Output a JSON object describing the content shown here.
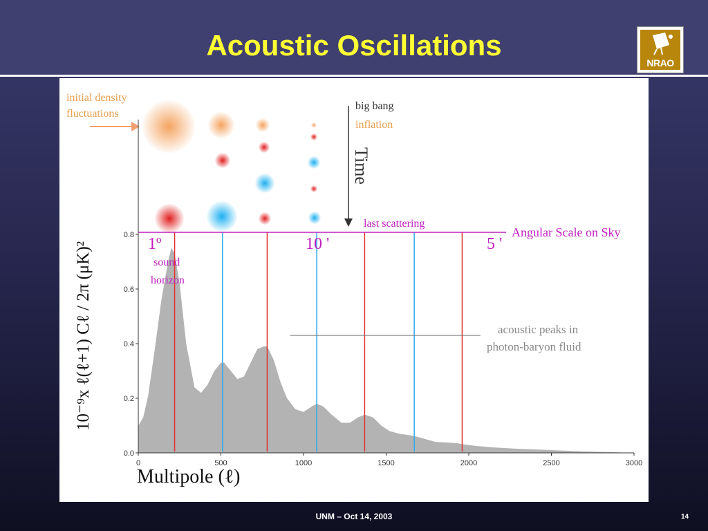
{
  "slide": {
    "title": "Acoustic Oscillations",
    "logo_text": "NRAO",
    "footer": "UNM – Oct 14, 2003",
    "page_number": "14"
  },
  "annotations": {
    "initial_density": [
      "initial density",
      "fluctuations"
    ],
    "big_bang": "big bang",
    "inflation": "inflation",
    "time": "Time",
    "last_scattering": "last scattering",
    "angular_scale": "Angular Scale on Sky",
    "one_degree": "1º",
    "ten_arcmin": "10 '",
    "five_arcmin": "5 '",
    "sound_horizon": [
      "sound",
      "horizon"
    ],
    "acoustic_peaks": [
      "acoustic peaks in",
      "photon-baryon fluid"
    ]
  },
  "colors": {
    "title": "#ffff33",
    "spectrum_fill": "#b3b3b3",
    "orange": "#f4a460",
    "red": "#e03030",
    "blue": "#2aa8e8",
    "magenta": "#c020c0",
    "axis": "#333333"
  },
  "chart_data": {
    "type": "area",
    "title": "",
    "xlabel": "Multipole (ℓ)",
    "ylabel": "10⁻⁹x ℓ(ℓ+1) Cℓ / 2π  (μK)²",
    "xlim": [
      0,
      3000
    ],
    "ylim": [
      0,
      0.8
    ],
    "x_ticks": [
      0,
      500,
      1000,
      1500,
      2000,
      2500,
      3000
    ],
    "y_ticks": [
      "0.0",
      "0.2",
      "0.4",
      "0.6",
      "0.8"
    ],
    "series": [
      {
        "x": [
          0,
          30,
          60,
          100,
          140,
          180,
          200,
          220,
          250,
          290,
          340,
          380,
          420,
          460,
          500,
          520,
          560,
          600,
          640,
          680,
          720,
          760,
          780,
          820,
          860,
          900,
          950,
          1000,
          1050,
          1080,
          1120,
          1170,
          1230,
          1280,
          1330,
          1370,
          1420,
          1470,
          1520,
          1580,
          1640,
          1680,
          1740,
          1800,
          1870,
          1930,
          1980,
          2050,
          2150,
          2300,
          2500,
          2700,
          2900,
          3000
        ],
        "y": [
          0.1,
          0.13,
          0.21,
          0.38,
          0.56,
          0.7,
          0.75,
          0.73,
          0.62,
          0.4,
          0.24,
          0.22,
          0.25,
          0.3,
          0.33,
          0.33,
          0.3,
          0.27,
          0.28,
          0.33,
          0.38,
          0.39,
          0.39,
          0.34,
          0.26,
          0.2,
          0.16,
          0.15,
          0.17,
          0.18,
          0.17,
          0.14,
          0.11,
          0.11,
          0.13,
          0.14,
          0.13,
          0.1,
          0.08,
          0.07,
          0.065,
          0.06,
          0.05,
          0.04,
          0.038,
          0.035,
          0.03,
          0.025,
          0.02,
          0.015,
          0.01,
          0.005,
          0.002,
          0.0
        ]
      }
    ],
    "peak_markers": [
      {
        "x": 220,
        "color": "red"
      },
      {
        "x": 510,
        "color": "blue"
      },
      {
        "x": 780,
        "color": "red"
      },
      {
        "x": 1080,
        "color": "blue"
      },
      {
        "x": 1370,
        "color": "red"
      },
      {
        "x": 1670,
        "color": "blue"
      },
      {
        "x": 1960,
        "color": "red"
      }
    ],
    "annotation_line": {
      "x0": 920,
      "x1": 2070,
      "y": 0.43
    },
    "grid": false,
    "legend": "none"
  }
}
